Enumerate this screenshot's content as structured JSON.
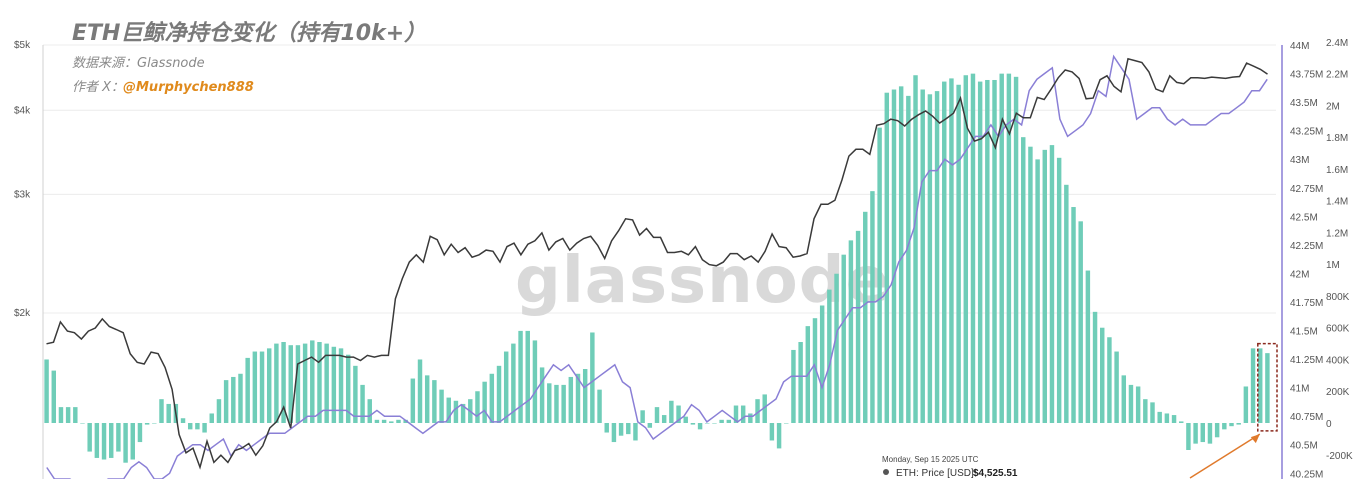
{
  "title": "ETH巨鲸净持仓变化（持有10k+）",
  "source_line": "数据来源：Glassnode",
  "author_prefix": "作者 X：",
  "author_handle": "@Murphychen888",
  "watermark": "glassnode",
  "tooltip": {
    "date": "Monday, Sep 15 2025 UTC",
    "label": "ETH: Price [USD]:",
    "value": "$4,525.51"
  },
  "colors": {
    "bars": "#6fcdb8",
    "price_line": "#3a3a3a",
    "supply_line": "#8a7fd6",
    "right_axis": "#8a7fd6",
    "highlight_box": "#8b2a1e",
    "arrow": "#e07a2c"
  },
  "chart_data": {
    "type": "bar",
    "title": "ETH巨鲸净持仓变化（持有10k+）",
    "left_axis": {
      "scale": "log",
      "ticks": [
        "$2k",
        "$3k",
        "$4k",
        "$5k"
      ],
      "tick_values": [
        2000,
        3000,
        4000,
        5000
      ],
      "range": [
        1000,
        5000
      ]
    },
    "mid_axis": {
      "ticks": [
        "40.25M",
        "40.5M",
        "40.75M",
        "41M",
        "41.25M",
        "41.5M",
        "41.75M",
        "42M",
        "42.25M",
        "42.5M",
        "42.75M",
        "43M",
        "43.25M",
        "43.5M",
        "43.75M",
        "44M"
      ],
      "tick_values": [
        40.25,
        40.5,
        40.75,
        41,
        41.25,
        41.5,
        41.75,
        42,
        42.25,
        42.5,
        42.75,
        43,
        43.25,
        43.5,
        43.75,
        44
      ],
      "range": [
        40.25,
        44
      ]
    },
    "right_axis": {
      "ticks": [
        "-200K",
        "0",
        "200K",
        "400K",
        "600K",
        "800K",
        "1M",
        "1.2M",
        "1.4M",
        "1.6M",
        "1.8M",
        "2M",
        "2.2M",
        "2.4M"
      ],
      "tick_values": [
        -200,
        0,
        200,
        400,
        600,
        800,
        1000,
        1200,
        1400,
        1600,
        1800,
        2000,
        2200,
        2400
      ],
      "range": [
        -250,
        2400
      ]
    },
    "series": [
      {
        "type": "bar",
        "values": [
          400,
          330,
          100,
          100,
          100,
          0,
          -180,
          -220,
          -230,
          -220,
          -180,
          -250,
          -230,
          -120,
          -10,
          0,
          150,
          120,
          120,
          30,
          -40,
          -40,
          -60,
          60,
          150,
          270,
          290,
          310,
          410,
          450,
          450,
          470,
          500,
          510,
          490,
          490,
          500,
          520,
          510,
          500,
          480,
          470,
          430,
          360,
          240,
          150,
          20,
          20,
          10,
          20,
          20,
          280,
          400,
          300,
          270,
          210,
          160,
          140,
          120,
          150,
          200,
          260,
          310,
          360,
          450,
          500,
          580,
          580,
          520,
          350,
          250,
          240,
          240,
          290,
          310,
          340,
          570,
          210,
          -60,
          -120,
          -80,
          -70,
          -110,
          80,
          -30,
          100,
          50,
          140,
          110,
          40,
          -10,
          -40,
          0,
          0,
          20,
          20,
          110,
          110,
          60,
          150,
          180,
          -110,
          -160,
          0,
          460,
          510,
          610,
          660,
          740,
          840,
          940,
          1060,
          1150,
          1210,
          1330,
          1460,
          1860,
          2080,
          2100,
          2120,
          2060,
          2190,
          2100,
          2070,
          2090,
          2150,
          2170,
          2130,
          2190,
          2200,
          2150,
          2160,
          2160,
          2200,
          2200,
          2180,
          1800,
          1740,
          1660,
          1720,
          1750,
          1670,
          1500,
          1360,
          1270,
          960,
          700,
          600,
          540,
          450,
          300,
          240,
          230,
          150,
          130,
          70,
          60,
          50,
          10,
          -170,
          -130,
          -120,
          -130,
          -90,
          -40,
          -20,
          -10,
          230,
          470,
          470,
          440
        ],
        "note": "values in thousands (K)"
      },
      {
        "type": "line",
        "axis": "left",
        "values": [
          1800,
          1810,
          1940,
          1880,
          1870,
          1830,
          1880,
          1900,
          1960,
          1910,
          1890,
          1870,
          1740,
          1690,
          1680,
          1750,
          1740,
          1660,
          1540,
          1320,
          1240,
          1260,
          1180,
          1290,
          1200,
          1230,
          1200,
          1250,
          1260,
          1280,
          1230,
          1270,
          1350,
          1380,
          1450,
          1350,
          1680,
          1700,
          1720,
          1690,
          1730,
          1730,
          1730,
          1720,
          1720,
          1700,
          1730,
          1720,
          1730,
          1730,
          2100,
          2250,
          2380,
          2440,
          2380,
          2600,
          2570,
          2440,
          2530,
          2460,
          2500,
          2420,
          2440,
          2480,
          2470,
          2380,
          2510,
          2540,
          2440,
          2530,
          2560,
          2630,
          2480,
          2550,
          2580,
          2480,
          2540,
          2580,
          2600,
          2520,
          2410,
          2560,
          2650,
          2760,
          2750,
          2610,
          2670,
          2590,
          2590,
          2460,
          2460,
          2470,
          2440,
          2510,
          2400,
          2360,
          2350,
          2380,
          2450,
          2450,
          2400,
          2430,
          2380,
          2470,
          2620,
          2510,
          2500,
          2420,
          2430,
          2450,
          2760,
          2900,
          2900,
          2940,
          3150,
          3420,
          3500,
          3500,
          3440,
          3800,
          3820,
          3880,
          3860,
          3790,
          3880,
          3940,
          3990,
          3920,
          3830,
          3890,
          3960,
          4170,
          3760,
          3600,
          3630,
          3710,
          3520,
          3880,
          3690,
          3960,
          3900,
          3900,
          4180,
          4150,
          4300,
          4470,
          4590,
          4560,
          4460,
          4160,
          4170,
          4440,
          4500,
          4340,
          4260,
          4770,
          4740,
          4710,
          4560,
          4300,
          4260,
          4500,
          4400,
          4380,
          4470,
          4470,
          4460,
          4480,
          4470,
          4460,
          4480,
          4490,
          4700,
          4650,
          4600,
          4526
        ]
      },
      {
        "type": "line",
        "axis": "mid",
        "values": [
          40.3,
          40.2,
          40.2,
          40.2,
          40.1,
          40.1,
          40.1,
          40.1,
          40.2,
          40.2,
          40.2,
          40.3,
          40.35,
          40.3,
          40.2,
          40.2,
          40.25,
          40.4,
          40.45,
          40.5,
          40.5,
          40.45,
          40.5,
          40.55,
          40.4,
          40.5,
          40.45,
          40.5,
          40.55,
          40.6,
          40.6,
          40.6,
          40.65,
          40.7,
          40.75,
          40.75,
          40.8,
          40.8,
          40.8,
          40.8,
          40.75,
          40.75,
          40.75,
          40.8,
          40.75,
          40.75,
          40.75,
          40.7,
          40.65,
          40.6,
          40.65,
          40.7,
          40.7,
          40.8,
          40.85,
          40.8,
          40.75,
          40.8,
          40.7,
          40.7,
          40.75,
          40.8,
          40.85,
          40.9,
          41.0,
          41.1,
          41.2,
          41.15,
          41.2,
          41.1,
          41.0,
          41.05,
          41.1,
          41.15,
          41.2,
          41.05,
          41.0,
          40.7,
          40.65,
          40.55,
          40.6,
          40.65,
          40.7,
          40.75,
          40.85,
          40.8,
          40.7,
          40.75,
          40.8,
          40.75,
          40.7,
          40.75,
          40.75,
          40.8,
          40.85,
          40.9,
          41.05,
          41.1,
          41.1,
          41.1,
          41.2,
          41.0,
          41.2,
          41.5,
          41.6,
          41.7,
          41.7,
          41.75,
          41.75,
          41.8,
          41.9,
          42.1,
          42.2,
          42.4,
          42.8,
          42.9,
          42.9,
          43.0,
          42.95,
          43.0,
          43.1,
          43.2,
          43.2,
          43.3,
          43.2,
          43.3,
          43.35,
          43.3,
          43.6,
          43.7,
          43.75,
          43.8,
          43.35,
          43.2,
          43.25,
          43.3,
          43.4,
          43.6,
          43.55,
          43.9,
          43.8,
          43.7,
          43.35,
          43.4,
          43.45,
          43.45,
          43.35,
          43.3,
          43.35,
          43.3,
          43.3,
          43.3,
          43.35,
          43.4,
          43.4,
          43.45,
          43.5,
          43.6,
          43.6,
          43.7
        ]
      }
    ]
  }
}
